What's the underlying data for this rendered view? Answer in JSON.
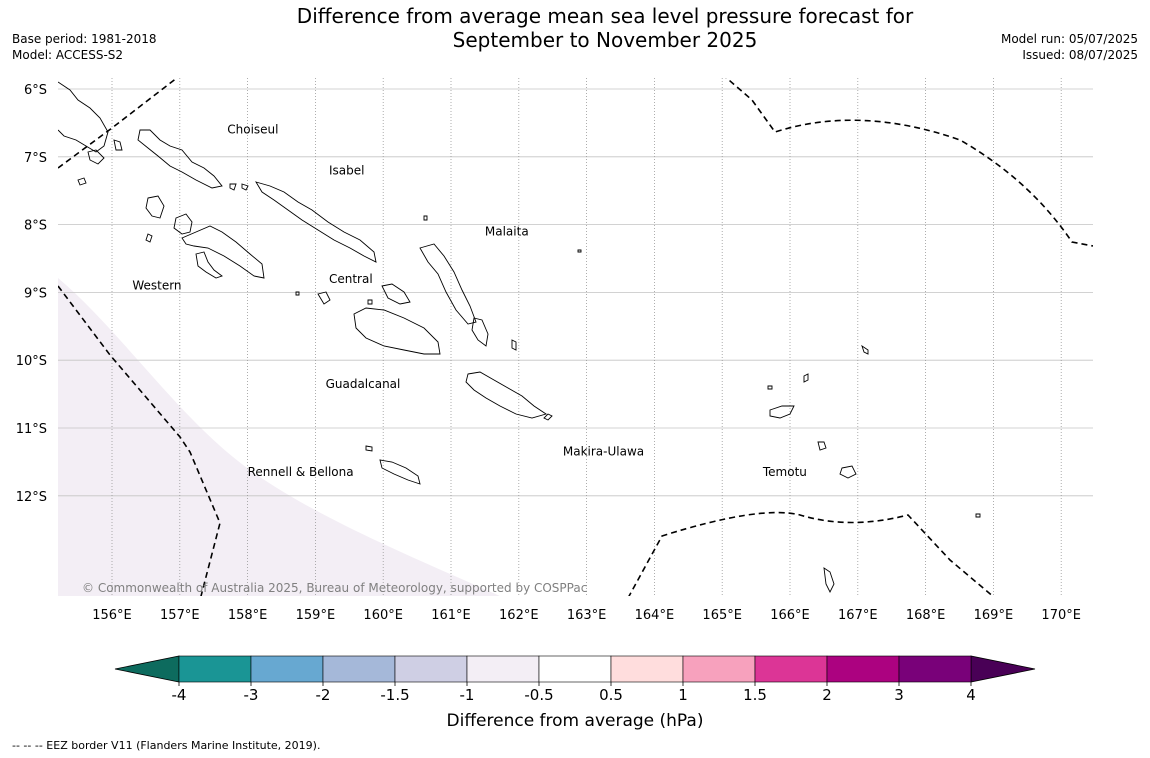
{
  "title": {
    "line1": "Difference from average mean sea level pressure forecast for",
    "line2": "September to November 2025"
  },
  "meta": {
    "base_period": "Base period: 1981-2018",
    "model": "Model: ACCESS-S2",
    "model_run": "Model run: 05/07/2025",
    "issued": "Issued: 08/07/2025"
  },
  "map": {
    "lat_labels": [
      "6°S",
      "7°S",
      "8°S",
      "9°S",
      "10°S",
      "11°S",
      "12°S"
    ],
    "lon_labels": [
      "156°E",
      "157°E",
      "158°E",
      "159°E",
      "160°E",
      "161°E",
      "162°E",
      "163°E",
      "164°E",
      "165°E",
      "166°E",
      "167°E",
      "168°E",
      "169°E",
      "170°E"
    ],
    "lats": [
      -6,
      -7,
      -8,
      -9,
      -10,
      -11,
      -12
    ],
    "lons": [
      156,
      157,
      158,
      159,
      160,
      161,
      162,
      163,
      164,
      165,
      166,
      167,
      168,
      169,
      170
    ],
    "provinces": [
      {
        "name": "Choiseul",
        "lon": 157.7,
        "lat": -6.6
      },
      {
        "name": "Isabel",
        "lon": 159.2,
        "lat": -7.2
      },
      {
        "name": "Malaita",
        "lon": 161.5,
        "lat": -8.1
      },
      {
        "name": "Western",
        "lon": 156.3,
        "lat": -8.9
      },
      {
        "name": "Central",
        "lon": 159.2,
        "lat": -8.8
      },
      {
        "name": "Guadalcanal",
        "lon": 159.15,
        "lat": -10.35
      },
      {
        "name": "Makira-Ulawa",
        "lon": 162.65,
        "lat": -11.35
      },
      {
        "name": "Rennell & Bellona",
        "lon": 158.0,
        "lat": -11.65
      },
      {
        "name": "Temotu",
        "lon": 165.6,
        "lat": -11.65
      }
    ],
    "copyright": "© Commonwealth of Australia 2025, Bureau of Meteorology, supported by COSPPac",
    "shading_color": "#f3eef5"
  },
  "colorbar": {
    "label": "Difference from average (hPa)",
    "ticks": [
      "-4",
      "-3",
      "-2",
      "-1.5",
      "-1",
      "-0.5",
      "0.5",
      "1",
      "1.5",
      "2",
      "3",
      "4"
    ],
    "colors": [
      "#1a9595",
      "#67a8d1",
      "#a5b8d9",
      "#cfcfe4",
      "#f3eef5",
      "#ffffff",
      "#ffdddd",
      "#f7a1bd",
      "#dc3596",
      "#ac0280",
      "#790179"
    ],
    "under_color": "#0d6b5e",
    "over_color": "#490056"
  },
  "footnote": "--  --  -- EEZ border V11 (Flanders Marine Institute, 2019)."
}
